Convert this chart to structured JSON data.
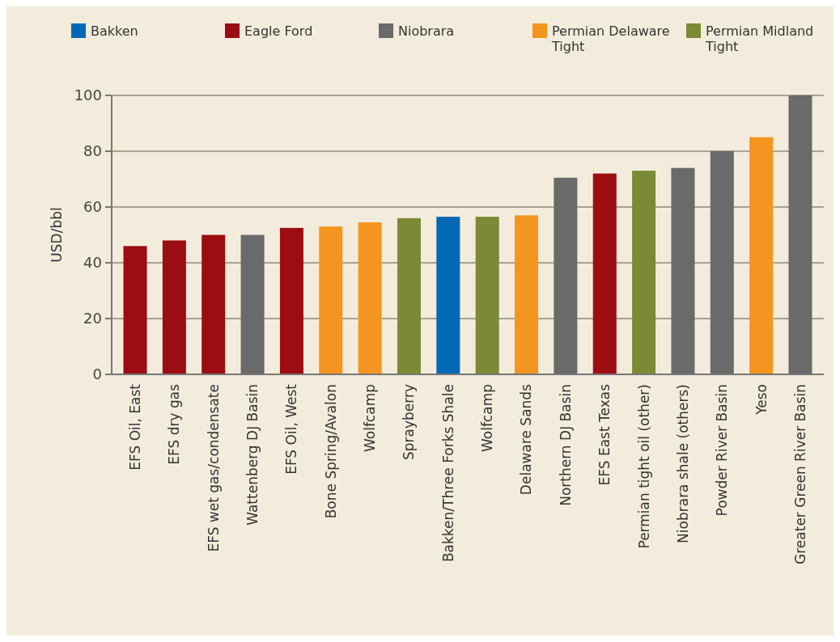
{
  "chart_data": {
    "type": "bar",
    "ylabel": "USD/bbl",
    "categories": [
      "EFS Oil, East",
      "EFS dry gas",
      "EFS wet gas/condensate",
      "Wattenberg DJ Basin",
      "EFS Oil, West",
      "Bone Spring/Avalon",
      "Wolfcamp",
      "Sprayberry",
      "Bakken/Three Forks Shale",
      "Wolfcamp",
      "Delaware Sands",
      "Northern DJ Basin",
      "EFS East Texas",
      "Permian tight oil (other)",
      "Niobrara shale (others)",
      "Powder River Basin",
      "Yeso",
      "Greater Green River Basin"
    ],
    "series": [
      {
        "name": "Bakken",
        "color": "#0068b4",
        "values": [
          null,
          null,
          null,
          null,
          null,
          null,
          null,
          null,
          56.5,
          null,
          null,
          null,
          null,
          null,
          null,
          null,
          null,
          null
        ]
      },
      {
        "name": "Eagle Ford",
        "color": "#9b0d10",
        "values": [
          46,
          48,
          50,
          null,
          52.5,
          null,
          null,
          null,
          null,
          null,
          null,
          null,
          72,
          null,
          null,
          null,
          null,
          null
        ]
      },
      {
        "name": "Niobrara",
        "color": "#6a6a6a",
        "values": [
          null,
          null,
          null,
          50,
          null,
          null,
          null,
          null,
          null,
          null,
          null,
          70.5,
          null,
          null,
          74,
          80,
          null,
          100
        ]
      },
      {
        "name": "Permian Delaware Tight",
        "color": "#f3951f",
        "values": [
          null,
          null,
          null,
          null,
          null,
          53,
          54.5,
          null,
          null,
          null,
          57,
          null,
          null,
          null,
          null,
          null,
          85,
          null
        ]
      },
      {
        "name": "Permian Midland Tight",
        "color": "#7a8a35",
        "values": [
          null,
          null,
          null,
          null,
          null,
          null,
          null,
          56,
          null,
          56.5,
          null,
          null,
          null,
          73,
          null,
          null,
          null,
          null
        ]
      }
    ],
    "ylim": [
      0,
      100
    ],
    "yticks": [
      0,
      20,
      40,
      60,
      80,
      100
    ],
    "grid": "y",
    "legend": "top"
  }
}
